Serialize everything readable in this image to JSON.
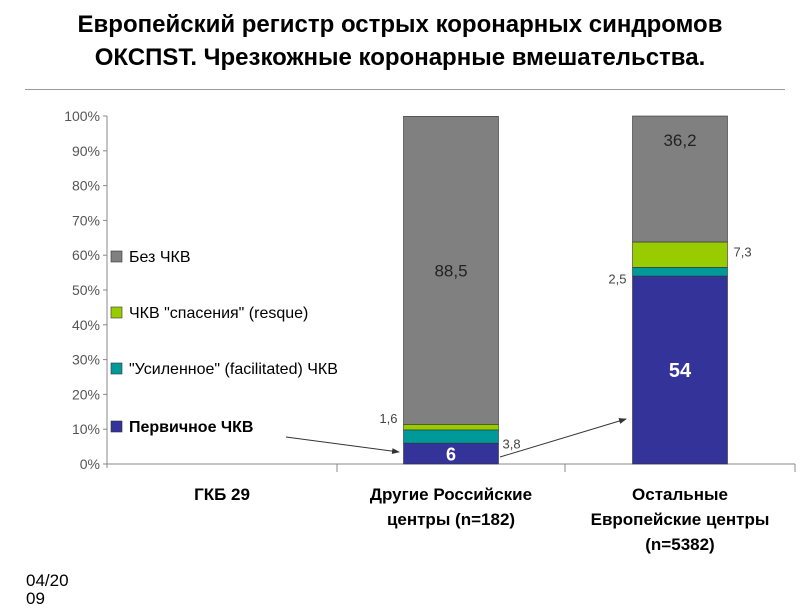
{
  "title": {
    "line1": "Европейский регистр острых коронарных синдромов",
    "line2": "ОКСПST. Чрезкожные коронарные вмешательства."
  },
  "footer": "04/2009",
  "chart_data": {
    "type": "bar",
    "stacked": true,
    "percent": true,
    "categories": [
      "ГКБ 29",
      "Другие Российские центры (n=182)",
      "Остальные Европейские центры (n=5382)"
    ],
    "category_lines": [
      [
        "ГКБ 29"
      ],
      [
        "Другие Российские",
        "центры (n=182)"
      ],
      [
        "Остальные",
        "Европейские центры",
        "(n=5382)"
      ]
    ],
    "series": [
      {
        "name": "Первичное ЧКВ",
        "color": "#333399",
        "values": [
          null,
          6,
          54
        ],
        "labels": [
          "",
          "6",
          "54"
        ]
      },
      {
        "name": "\"Усиленное\" (facilitated) ЧКВ",
        "color": "#009999",
        "values": [
          null,
          3.8,
          2.5
        ],
        "labels": [
          "",
          "3,8",
          "2,5"
        ]
      },
      {
        "name": "ЧКВ \"спасения\" (resque)",
        "color": "#99CC00",
        "values": [
          null,
          1.6,
          7.3
        ],
        "labels": [
          "",
          "1,6",
          "7,3"
        ]
      },
      {
        "name": "Без ЧКВ",
        "color": "#808080",
        "values": [
          null,
          88.5,
          36.2
        ],
        "labels": [
          "",
          "88,5",
          "36,2"
        ]
      }
    ],
    "legend_order": [
      3,
      2,
      1,
      0
    ],
    "yticks": [
      "0%",
      "10%",
      "20%",
      "30%",
      "40%",
      "50%",
      "60%",
      "70%",
      "80%",
      "90%",
      "100%"
    ],
    "ylim": [
      0,
      100
    ],
    "grid": false,
    "legend_placement": "left-inside"
  }
}
